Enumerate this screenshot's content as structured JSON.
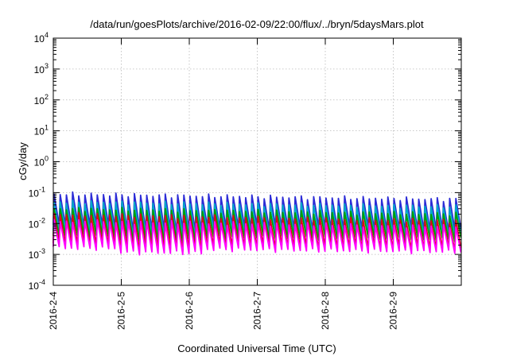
{
  "chart_data": {
    "type": "line",
    "title": "/data/run/goesPlots/archive/2016-02-09/22:00/flux/../bryn/5daysMars.plot",
    "xlabel": "Coordinated Universal Time (UTC)",
    "ylabel": "cGy/day",
    "yscale": "log",
    "ylim": [
      0.0001,
      10000
    ],
    "xlim": [
      "2016-02-04",
      "2016-02-10"
    ],
    "x_ticks": [
      "2016-2-4",
      "2016-2-5",
      "2016-2-6",
      "2016-2-7",
      "2016-2-8",
      "2016-2-9"
    ],
    "y_ticks": [
      {
        "value": 0.0001,
        "base": "10",
        "exp": "-4"
      },
      {
        "value": 0.001,
        "base": "10",
        "exp": "-3"
      },
      {
        "value": 0.01,
        "base": "10",
        "exp": "-2"
      },
      {
        "value": 0.1,
        "base": "10",
        "exp": "-1"
      },
      {
        "value": 1,
        "base": "10",
        "exp": "0"
      },
      {
        "value": 10,
        "base": "10",
        "exp": "1"
      },
      {
        "value": 100,
        "base": "10",
        "exp": "2"
      },
      {
        "value": 1000,
        "base": "10",
        "exp": "3"
      },
      {
        "value": 10000,
        "base": "10",
        "exp": "4"
      }
    ],
    "grid": true,
    "legend": "none",
    "pattern": "sawtooth, about 11 cycles per day",
    "series": [
      {
        "color": "#2b2bd6",
        "peaks": [
          0.09,
          0.06
        ],
        "troughs": [
          0.009,
          0.006
        ]
      },
      {
        "color": "#00a8c8",
        "peaks": [
          0.05,
          0.035
        ],
        "troughs": [
          0.006,
          0.004
        ]
      },
      {
        "color": "#00a000",
        "peaks": [
          0.03,
          0.02
        ],
        "troughs": [
          0.004,
          0.003
        ]
      },
      {
        "color": "#e0001c",
        "peaks": [
          0.02,
          0.012
        ],
        "troughs": [
          0.0022,
          0.0015
        ]
      },
      {
        "color": "#ff00ff",
        "peaks": [
          0.012,
          0.008
        ],
        "troughs": [
          0.0016,
          0.0012
        ]
      }
    ]
  }
}
